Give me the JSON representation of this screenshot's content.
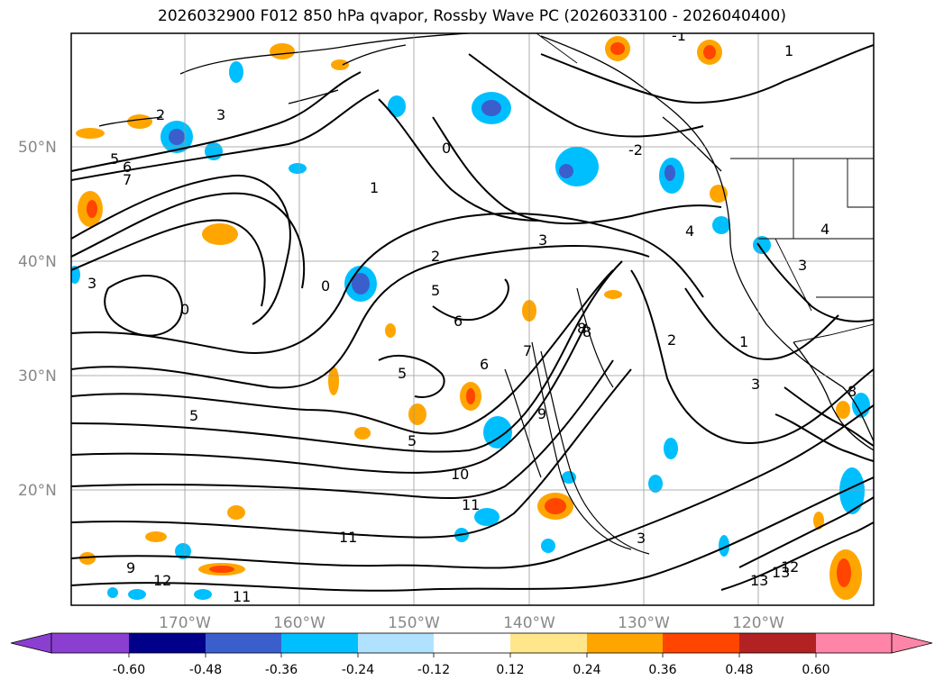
{
  "title": "2026032900 F012 850 hPa qvapor, Rossby Wave PC (2026033100 - 2026040400)",
  "lat_labels": [
    "50°N",
    "40°N",
    "30°N",
    "20°N"
  ],
  "lon_labels": [
    "170°W",
    "160°W",
    "150°W",
    "140°W",
    "130°W",
    "120°W"
  ],
  "colorbar": {
    "colors": [
      "#8a3fd1",
      "#00008b",
      "#3a5fcd",
      "#00bfff",
      "#b0e2ff",
      "#ffffff",
      "#ffe68a",
      "#ffa500",
      "#ff4500",
      "#b22222",
      "#ff85a8"
    ],
    "tick_labels": [
      "-0.60",
      "-0.48",
      "-0.36",
      "-0.24",
      "-0.12",
      "0.12",
      "0.24",
      "0.36",
      "0.48",
      "0.60"
    ]
  },
  "contour_labels": [
    "5",
    "6",
    "7",
    "2",
    "3",
    "1",
    "0",
    "4",
    "8",
    "9",
    "10",
    "11",
    "12",
    "13",
    "-1",
    "-2",
    "0",
    "3",
    "2",
    "5",
    "6",
    "5",
    "4",
    "3",
    "8",
    "7",
    "2",
    "1",
    "3",
    "5",
    "11",
    "9",
    "13",
    "12",
    "11",
    "3",
    "6",
    "3",
    "1",
    "0",
    "5",
    "8"
  ],
  "colors": {
    "grid": "#999999",
    "contour": "#000000",
    "border": "#000000"
  }
}
